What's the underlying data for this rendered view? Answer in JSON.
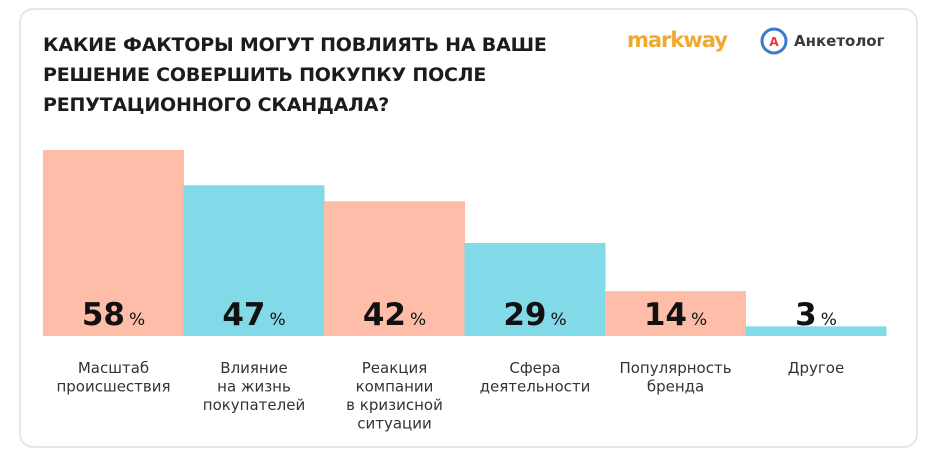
{
  "title_lines": [
    "КАКИЕ ФАКТОРЫ МОГУТ ПОВЛИЯТЬ НА ВАШЕ",
    "РЕШЕНИЕ СОВЕРШИТЬ ПОКУПКУ ПОСЛЕ",
    "РЕПУТАЦИОННОГО СКАНДАЛА?"
  ],
  "brands": {
    "markway": "markway",
    "anketolog": "Анкетолог",
    "anketolog_icon_letter": "А"
  },
  "colors": {
    "salmon": "#fdbda8",
    "cyan": "#82d9e7",
    "text": "#1c1c1c"
  },
  "chart_data": {
    "type": "bar",
    "title": "КАКИЕ ФАКТОРЫ МОГУТ ПОВЛИЯТЬ НА ВАШЕ РЕШЕНИЕ СОВЕРШИТЬ ПОКУПКУ ПОСЛЕ РЕПУТАЦИОННОГО СКАНДАЛА?",
    "unit": "%",
    "ylim": [
      0,
      58
    ],
    "grid": false,
    "categories": [
      [
        "Масштаб",
        "происшествия"
      ],
      [
        "Влияние",
        "на жизнь",
        "покупателей"
      ],
      [
        "Реакция",
        "компании",
        "в кризисной",
        "ситуации"
      ],
      [
        "Сфера",
        "деятельности"
      ],
      [
        "Популярность",
        "бренда"
      ],
      [
        "Другое"
      ]
    ],
    "values": [
      58,
      47,
      42,
      29,
      14,
      3
    ],
    "bar_colors": [
      "#fdbda8",
      "#82d9e7",
      "#fdbda8",
      "#82d9e7",
      "#fdbda8",
      "#82d9e7"
    ]
  }
}
